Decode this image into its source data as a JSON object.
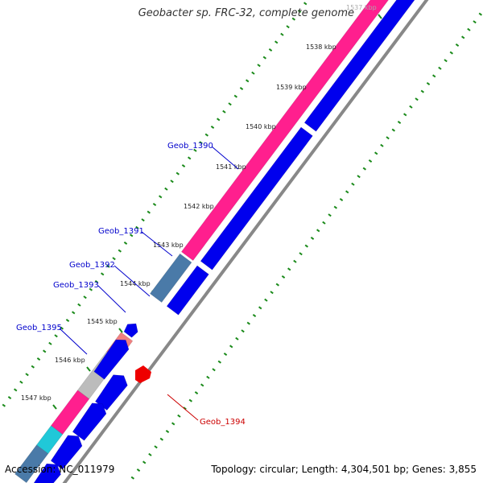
{
  "title": "Geobacter sp. FRC-32, complete genome",
  "footer": {
    "accession": "Accession: NC_011979",
    "summary": "Topology: circular; Length: 4,304,501 bp; Genes: 3,855"
  },
  "ticks": [
    {
      "label": "1537 kbp"
    },
    {
      "label": "1538 kbp"
    },
    {
      "label": "1539 kbp"
    },
    {
      "label": "1540 kbp"
    },
    {
      "label": "1541 kbp"
    },
    {
      "label": "1542 kbp"
    },
    {
      "label": "1543 kbp"
    },
    {
      "label": "1544 kbp"
    },
    {
      "label": "1545 kbp"
    },
    {
      "label": "1546 kbp"
    },
    {
      "label": "1547 kbp"
    }
  ],
  "genes": [
    {
      "name": "Geob_1390",
      "color": "#0000cc"
    },
    {
      "name": "Geob_1391",
      "color": "#0000cc"
    },
    {
      "name": "Geob_1392",
      "color": "#0000cc"
    },
    {
      "name": "Geob_1393",
      "color": "#0000cc"
    },
    {
      "name": "Geob_1395",
      "color": "#0000cc"
    },
    {
      "name": "Geob_1394",
      "color": "#cc0000"
    }
  ],
  "colors": {
    "cds_forward": "#0000ee",
    "cds_reverse": "#ee0000",
    "cog_magenta": "#ff1f8e",
    "cog_steelblue": "#4a7aa8",
    "cog_pink": "#f08080",
    "cog_gray": "#bcbcbc",
    "cog_cyan": "#20c8d8",
    "backbone": "#888888",
    "tick": "#1a8a1a"
  }
}
